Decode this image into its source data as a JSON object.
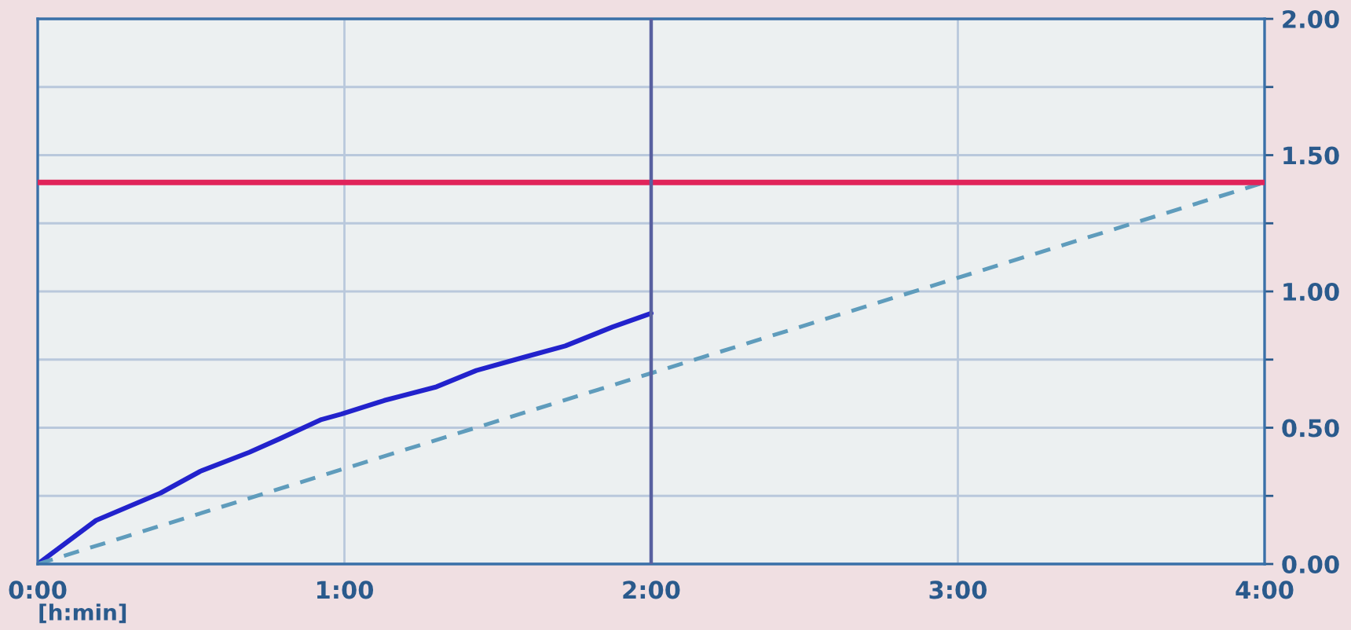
{
  "chart_data": {
    "type": "line",
    "xlabel": "[h:min]",
    "xlim": [
      0,
      4
    ],
    "xticks": [
      {
        "value": 0,
        "label": "0:00"
      },
      {
        "value": 1,
        "label": "1:00"
      },
      {
        "value": 2,
        "label": "2:00"
      },
      {
        "value": 3,
        "label": "3:00"
      },
      {
        "value": 4,
        "label": "4:00"
      }
    ],
    "ylim": [
      0,
      2
    ],
    "yticks": [
      {
        "value": 0,
        "label": "0.00"
      },
      {
        "value": 0.25,
        "label": null
      },
      {
        "value": 0.5,
        "label": "0.50"
      },
      {
        "value": 0.75,
        "label": null
      },
      {
        "value": 1,
        "label": "1.00"
      },
      {
        "value": 1.25,
        "label": null
      },
      {
        "value": 1.5,
        "label": "1.50"
      },
      {
        "value": 1.75,
        "label": null
      },
      {
        "value": 2,
        "label": "2.00"
      }
    ],
    "grid": true,
    "marker": "none",
    "series": [
      {
        "color": "#2222cc",
        "line_style": "solid",
        "x": [
          0,
          0.19,
          0.4,
          0.53,
          0.69,
          0.79,
          0.925,
          0.99,
          1.13,
          1.3,
          1.43,
          1.59,
          1.72,
          1.875,
          2.0
        ],
        "values": [
          0,
          0.16,
          0.26,
          0.34,
          0.41,
          0.46,
          0.53,
          0.55,
          0.6,
          0.65,
          0.71,
          0.76,
          0.8,
          0.87,
          0.92
        ]
      },
      {
        "color": "#5f9cbc",
        "line_style": "dashed",
        "x": [
          0,
          4
        ],
        "values": [
          0,
          1.4
        ]
      }
    ],
    "ref_lines": [
      {
        "axis": "y",
        "value": 1.4,
        "color": "#e0245a",
        "line_style": "solid"
      },
      {
        "axis": "x",
        "value": 2,
        "color": "#5860a0",
        "line_style": "solid"
      }
    ]
  }
}
